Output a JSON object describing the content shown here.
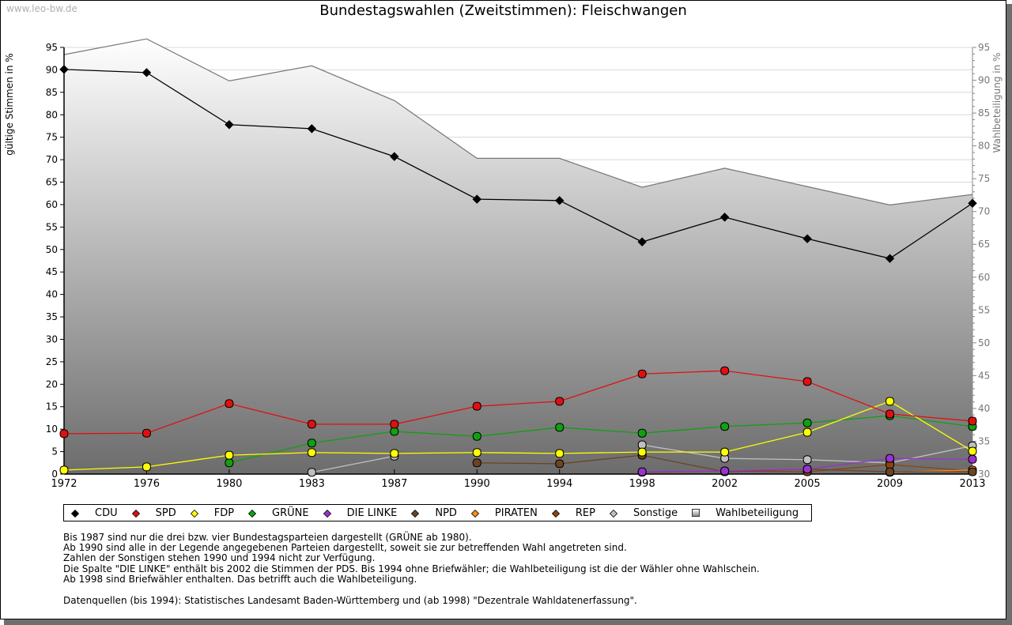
{
  "watermark": "www.leo-bw.de",
  "chart_data": {
    "type": "line",
    "title": "Bundestagswahlen (Zweitstimmen): Fleischwangen",
    "ylabel": "gültige Stimmen in %",
    "ylabel_right": "Wahlbeteiligung in %",
    "ylim": [
      0,
      95
    ],
    "ylim_right": [
      30,
      95
    ],
    "yticks": [
      0,
      5,
      10,
      15,
      20,
      25,
      30,
      35,
      40,
      45,
      50,
      55,
      60,
      65,
      70,
      75,
      80,
      85,
      90,
      95
    ],
    "yticks_right": [
      30,
      35,
      40,
      45,
      50,
      55,
      60,
      65,
      70,
      75,
      80,
      85,
      90,
      95
    ],
    "categories": [
      "1972",
      "1976",
      "1980",
      "1983",
      "1987",
      "1990",
      "1994",
      "1998",
      "2002",
      "2005",
      "2009",
      "2013"
    ],
    "grid": true,
    "legend_position": "bottom",
    "turnout": {
      "name": "Wahlbeteiligung",
      "axis": "right",
      "type": "area",
      "values": [
        93.9,
        96.3,
        89.9,
        92.2,
        86.9,
        78.1,
        78.1,
        73.7,
        76.6,
        73.8,
        71.0,
        72.6
      ]
    },
    "series": [
      {
        "name": "CDU",
        "color": "#000000",
        "marker": "diamond",
        "values": [
          90.1,
          89.4,
          77.8,
          76.9,
          70.7,
          61.2,
          60.9,
          51.7,
          57.2,
          52.4,
          48.0,
          60.3
        ]
      },
      {
        "name": "SPD",
        "color": "#e01010",
        "marker": "circle",
        "values": [
          9.0,
          9.1,
          15.7,
          11.1,
          11.1,
          15.1,
          16.2,
          22.3,
          23.0,
          20.6,
          13.4,
          11.8
        ]
      },
      {
        "name": "FDP",
        "color": "#ffff00",
        "marker": "circle",
        "values": [
          0.9,
          1.6,
          4.2,
          4.8,
          4.6,
          4.8,
          4.6,
          4.9,
          4.9,
          9.3,
          16.2,
          5.1
        ]
      },
      {
        "name": "GRÜNE",
        "color": "#10a010",
        "marker": "circle",
        "values": [
          null,
          null,
          2.5,
          6.9,
          9.5,
          8.4,
          10.4,
          9.1,
          10.6,
          11.4,
          13.0,
          10.6
        ]
      },
      {
        "name": "DIE LINKE",
        "color": "#9933cc",
        "marker": "circle",
        "values": [
          null,
          null,
          null,
          null,
          null,
          null,
          null,
          0.5,
          0.7,
          1.1,
          3.5,
          3.3
        ]
      },
      {
        "name": "NPD",
        "color": "#6b4424",
        "marker": "circle",
        "values": [
          null,
          null,
          null,
          null,
          null,
          2.5,
          2.3,
          4.2,
          0.5,
          1.1,
          0.5,
          0.5
        ]
      },
      {
        "name": "PIRATEN",
        "color": "#ff8c1a",
        "marker": "circle",
        "values": [
          null,
          null,
          null,
          null,
          null,
          null,
          null,
          null,
          null,
          null,
          0.4,
          0.9
        ]
      },
      {
        "name": "REP",
        "color": "#8b4513",
        "marker": "circle",
        "values": [
          null,
          null,
          null,
          null,
          null,
          null,
          null,
          0.4,
          0.7,
          0.5,
          2.1,
          0.7
        ]
      },
      {
        "name": "Sonstige",
        "color": "#c0c0c0",
        "marker": "circle",
        "values": [
          null,
          null,
          null,
          0.4,
          4.0,
          null,
          null,
          6.5,
          3.5,
          3.2,
          2.5,
          6.3
        ]
      }
    ]
  },
  "legend": [
    {
      "label": "CDU",
      "color": "#000000",
      "shape": "diamond"
    },
    {
      "label": "SPD",
      "color": "#e01010",
      "shape": "diamond"
    },
    {
      "label": "FDP",
      "color": "#ffff00",
      "shape": "diamond"
    },
    {
      "label": "GRÜNE",
      "color": "#10a010",
      "shape": "diamond"
    },
    {
      "label": "DIE LINKE",
      "color": "#9933cc",
      "shape": "diamond"
    },
    {
      "label": "NPD",
      "color": "#6b4424",
      "shape": "diamond"
    },
    {
      "label": "PIRATEN",
      "color": "#ff8c1a",
      "shape": "diamond"
    },
    {
      "label": "REP",
      "color": "#8b4513",
      "shape": "diamond"
    },
    {
      "label": "Sonstige",
      "color": "#c0c0c0",
      "shape": "diamond"
    },
    {
      "label": "Wahlbeteiligung",
      "color": "#cccccc",
      "shape": "square"
    }
  ],
  "notes": [
    "Bis 1987 sind nur die drei bzw. vier Bundestagsparteien dargestellt (GRÜNE ab 1980).",
    "Ab 1990 sind alle in der Legende angegebenen Parteien dargestellt, soweit sie zur betreffenden Wahl angetreten sind.",
    "Zahlen der Sonstigen stehen 1990 und 1994 nicht zur Verfügung.",
    "Die Spalte \"DIE LINKE\" enthält bis 2002 die Stimmen der PDS. Bis 1994 ohne Briefwähler; die Wahlbeteiligung ist die der Wähler ohne Wahlschein.",
    "Ab 1998 sind Briefwähler enthalten. Das betrifft auch die Wahlbeteiligung."
  ],
  "source": "Datenquellen (bis 1994): Statistisches Landesamt Baden-Württemberg und (ab 1998) \"Dezentrale Wahldatenerfassung\"."
}
